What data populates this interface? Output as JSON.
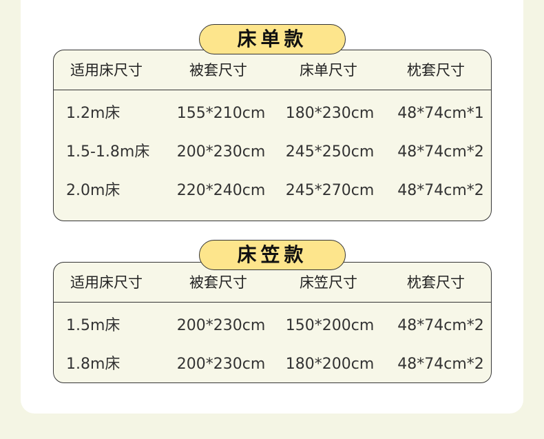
{
  "colors": {
    "badge": "#fde58c",
    "table_bg": "#f7f7e8",
    "page_bg": "#f4f5e4"
  },
  "sections": [
    {
      "title": "床单款",
      "headers": [
        "适用床尺寸",
        "被套尺寸",
        "床单尺寸",
        "枕套尺寸"
      ],
      "rows": [
        [
          "1.2m床",
          "155*210cm",
          "180*230cm",
          "48*74cm*1"
        ],
        [
          "1.5-1.8m床",
          "200*230cm",
          "245*250cm",
          "48*74cm*2"
        ],
        [
          "2.0m床",
          "220*240cm",
          "245*270cm",
          "48*74cm*2"
        ]
      ]
    },
    {
      "title": "床笠款",
      "headers": [
        "适用床尺寸",
        "被套尺寸",
        "床笠尺寸",
        "枕套尺寸"
      ],
      "rows": [
        [
          "1.5m床",
          "200*230cm",
          "150*200cm",
          "48*74cm*2"
        ],
        [
          "1.8m床",
          "200*230cm",
          "180*200cm",
          "48*74cm*2"
        ]
      ]
    }
  ]
}
